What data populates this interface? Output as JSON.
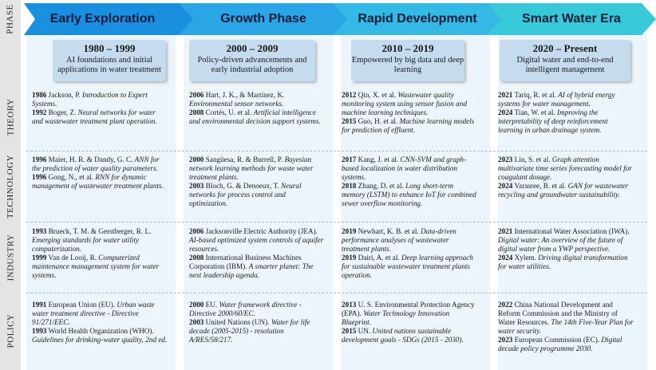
{
  "row_labels": [
    "PHASE",
    "THEORY",
    "TECHNOLOGY",
    "INDUSTRY",
    "POLICY"
  ],
  "colors": {
    "arrow_fill": [
      "#1a8fe0",
      "#2aa6e6",
      "#33b9e4",
      "#38c9d9"
    ],
    "header_box": "#c5dcef",
    "column_bg": "#ecf5fb"
  },
  "phases": [
    {
      "name": "Early Exploration",
      "years": "1980 – 1999",
      "description": "AI foundations and initial applications in water treatment",
      "theory": [
        {
          "year": "1986",
          "authors": "Jackson, P.",
          "title": "Introduction to Expert Systems."
        },
        {
          "year": "1992",
          "authors": "Boger, Z.",
          "title": "Neural networks for water and wastewater treatment plant operation."
        }
      ],
      "technology": [
        {
          "year": "1996",
          "authors": "Maier, H. R. & Dandy, G. C.",
          "title": "ANN for the prediction of water quality parameters."
        },
        {
          "year": "1996",
          "authors": "Gong, N., et al.",
          "title": "RNN for dynamic management of wastewater treatment plants."
        }
      ],
      "industry": [
        {
          "year": "1993",
          "authors": "Brueck, T. M. & Gerstberger, R. L.",
          "title": "Emerging standards for water utility computerization."
        },
        {
          "year": "1999",
          "authors": "Van de Looij, R.",
          "title": "Computerized maintenance management system for water systems."
        }
      ],
      "policy": [
        {
          "year": "1991",
          "authors": "European Union (EU).",
          "title": "Urban waste water treatment directive - Directive 91/271/EEC."
        },
        {
          "year": "1993",
          "authors": "World Health Organization (WHO).",
          "title": "Guidelines for drinking-water quality, 2nd ed."
        }
      ]
    },
    {
      "name": "Growth Phase",
      "years": "2000 – 2009",
      "description": "Policy-driven advancements and early industrial adoption",
      "theory": [
        {
          "year": "2006",
          "authors": "Hart, J. K., & Martinez, K.",
          "title": "Environmental sensor networks."
        },
        {
          "year": "2008",
          "authors": "Cortés, U. et al.",
          "title": "Artificial intelligence and environmental decision support systems."
        }
      ],
      "technology": [
        {
          "year": "2000",
          "authors": "Sangüesa, R. & Burrell, P.",
          "title": "Bayesian network learning methods for waste water treatment plants."
        },
        {
          "year": "2003",
          "authors": "Bloch, G. & Denoeux, T.",
          "title": "Neural networks for process control and optimization."
        }
      ],
      "industry": [
        {
          "year": "2006",
          "authors": "Jacksonville Electric Authority (JEA).",
          "title": "AI-based optimized system controls of aquifer resources."
        },
        {
          "year": "2008",
          "authors": "International Business Machines Corporation (IBM).",
          "title": "A smarter planet: The next leadership agenda."
        }
      ],
      "policy": [
        {
          "year": "2000",
          "authors": "EU.",
          "title": "Water framework directive - Directive 2000/60/EC."
        },
        {
          "year": "2003",
          "authors": "United Nations (UN).",
          "title": "Water for life decade (2005-2015) - resolution A/RES/58/217."
        }
      ]
    },
    {
      "name": "Rapid Development",
      "years": "2010 – 2019",
      "description": "Empowered by big data and deep learning",
      "theory": [
        {
          "year": "2012",
          "authors": "Qin, X. et al.",
          "title": "Wastewater quality monitoring system using sensor fusion and machine learning techniques."
        },
        {
          "year": "2015",
          "authors": "Guo, H. et al.",
          "title": "Machine learning models for prediction of effluent."
        }
      ],
      "technology": [
        {
          "year": "2017",
          "authors": "Kang, J. et al.",
          "title": "CNN-SVM and graph-based localization in water distribution systems."
        },
        {
          "year": "2018",
          "authors": "Zhang, D. et al.",
          "title": "Long short-term memory (LSTM) to enhance IoT for combined sewer overflow monitoring."
        }
      ],
      "industry": [
        {
          "year": "2019",
          "authors": "Newhart, K. B. et al.",
          "title": "Data-driven performance analyses of wastewater treatment plants."
        },
        {
          "year": "2019",
          "authors": "Dairi, A. et al.",
          "title": "Deep learning approach for sustainable wastewater treatment plants operation."
        }
      ],
      "policy": [
        {
          "year": "2013",
          "authors": "U. S. Environmental Protection Agency (EPA).",
          "title": "Water Technology Innovation Blueprint."
        },
        {
          "year": "2015",
          "authors": "UN.",
          "title": "United nations sustainable development goals - SDGs (2015 - 2030)."
        }
      ]
    },
    {
      "name": "Smart Water Era",
      "years": "2020 – Present",
      "description": "Digital water and end-to-end intelligent management",
      "theory": [
        {
          "year": "2021",
          "authors": "Tariq, R. et al.",
          "title": "AI of hybrid energy systems for water management."
        },
        {
          "year": "2024",
          "authors": "Tian, W. et al.",
          "title": "Improving the interpretability of deep reinforcement learning in urban drainage system."
        }
      ],
      "technology": [
        {
          "year": "2023",
          "authors": "Lin, S. et al.",
          "title": "Graph attention multivariate time series forecasting model for coagulant dosage."
        },
        {
          "year": "2024",
          "authors": "Varasree, B. et al.",
          "title": "GAN for wastewater recycling and groundwater sustainability."
        }
      ],
      "industry": [
        {
          "year": "2021",
          "authors": "International Water Association (IWA).",
          "title": "Digital water: An overview of the future of digital water from a YWP perspective."
        },
        {
          "year": "2024",
          "authors": "Xylem.",
          "title": "Driving digital transformation for water utilities."
        }
      ],
      "policy": [
        {
          "year": "2022",
          "authors": "China National Development and Reform Commission and the Ministry of Water Resources.",
          "title": "The 14th Five-Year Plan for water security."
        },
        {
          "year": "2023",
          "authors": "European Commission (EC).",
          "title": "Digital decade policy programme 2030."
        }
      ]
    }
  ]
}
